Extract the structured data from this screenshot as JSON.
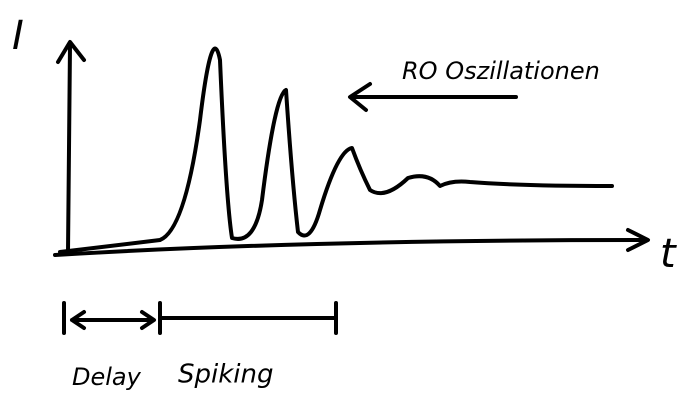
{
  "axes": {
    "y_label": "I",
    "x_label": "t"
  },
  "annotation": "RO Oszillationen",
  "intervals": [
    "Delay",
    "Spiking"
  ]
}
